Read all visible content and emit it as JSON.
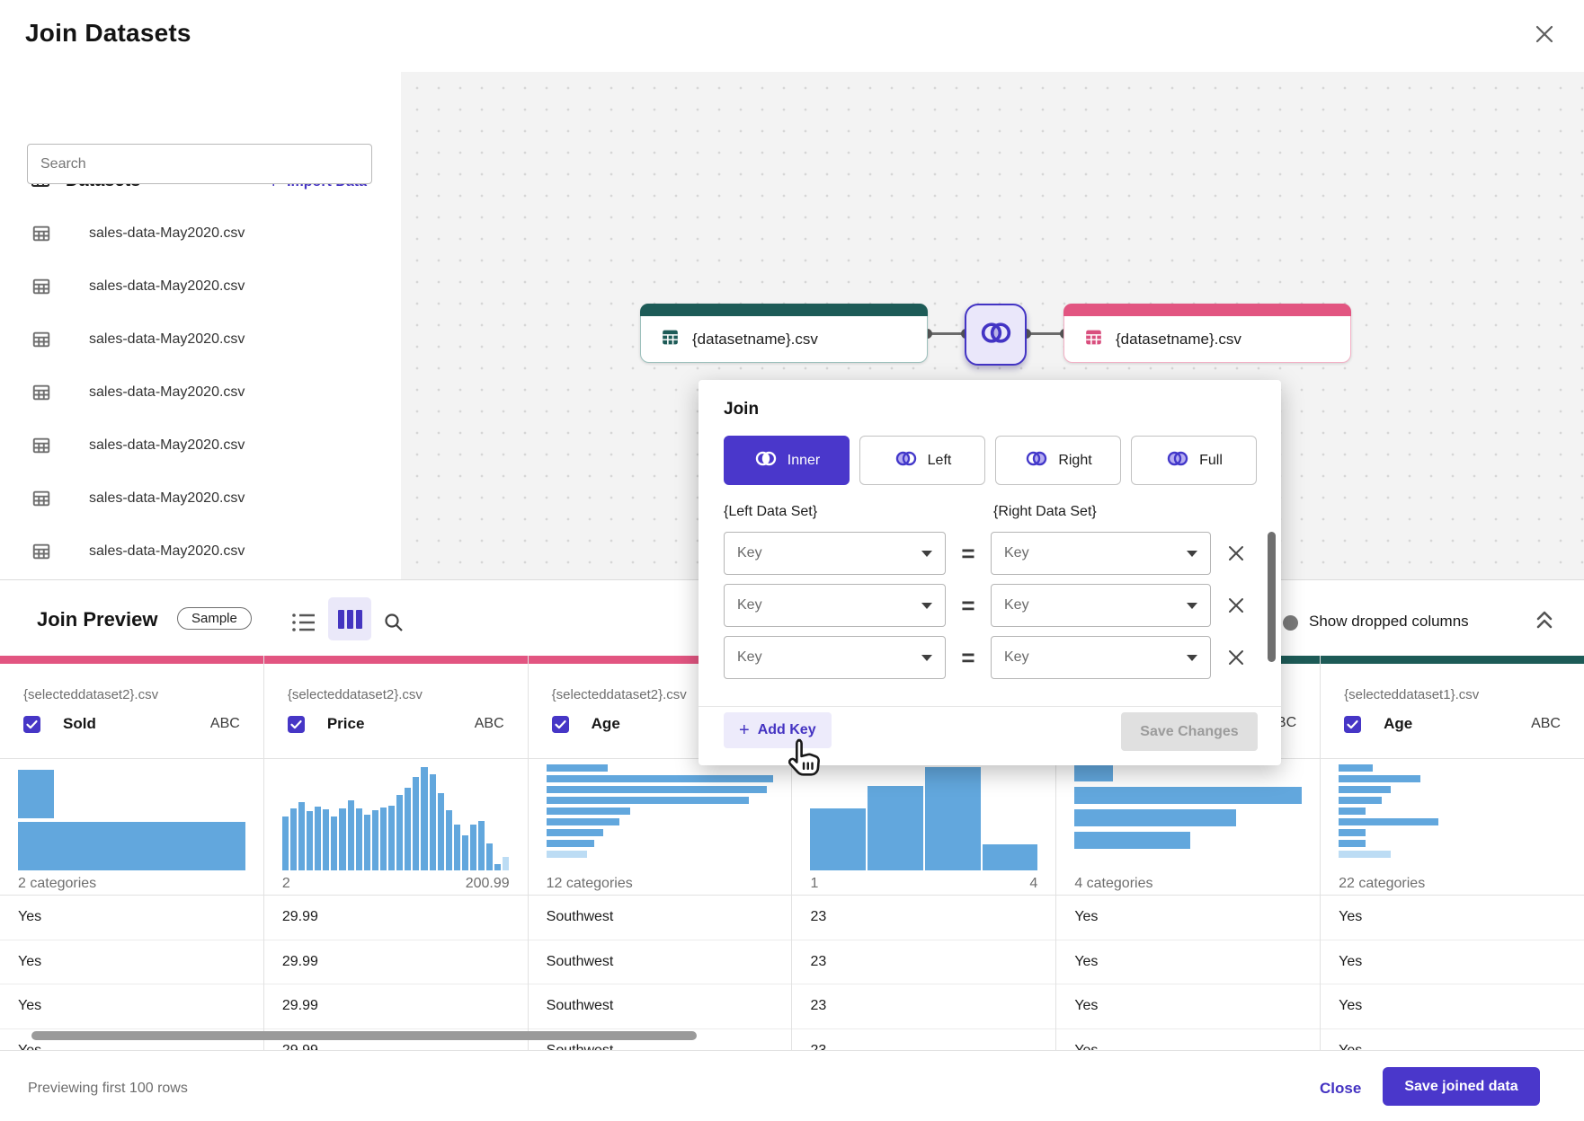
{
  "window": {
    "title": "Join Datasets"
  },
  "sidebar": {
    "header": "Datasets",
    "import_plus": "+",
    "import_label": "Import Data",
    "search_placeholder": "Search",
    "datasets": [
      "sales-data-May2020.csv",
      "sales-data-May2020.csv",
      "sales-data-May2020.csv",
      "sales-data-May2020.csv",
      "sales-data-May2020.csv",
      "sales-data-May2020.csv",
      "sales-data-May2020.csv"
    ]
  },
  "canvas": {
    "left_node_label": "{datasetname}.csv",
    "right_node_label": "{datasetname}.csv"
  },
  "join": {
    "title": "Join",
    "types": [
      {
        "label": "Inner",
        "variant": "inner",
        "selected": true
      },
      {
        "label": "Left",
        "variant": "left",
        "selected": false
      },
      {
        "label": "Right",
        "variant": "right",
        "selected": false
      },
      {
        "label": "Full",
        "variant": "full",
        "selected": false
      }
    ],
    "left_dataset_label": "{Left Data Set}",
    "right_dataset_label": "{Right Data Set}",
    "equals": "=",
    "key_placeholder": "Key",
    "key_row_count": 3,
    "add_key_plus": "+",
    "add_key_label": "Add Key",
    "save_changes_label": "Save Changes"
  },
  "preview": {
    "title": "Join Preview",
    "badge": "Sample",
    "show_dropped_label": "Show dropped columns",
    "previewing_note": "Previewing first 100 rows",
    "close_label": "Close",
    "save_label": "Save joined data"
  },
  "table": {
    "columns": [
      {
        "dataset": "{selecteddataset2}.csv",
        "name": "Sold",
        "type": "ABC",
        "checked": true,
        "accent": "#e25581",
        "stat_left": "2 categories",
        "stat_right": "",
        "hist": {
          "orient": "h",
          "bar": 54,
          "gap": 4,
          "align": "end",
          "values": [
            0.16,
            1.0
          ],
          "light": []
        },
        "values": [
          "Yes",
          "Yes",
          "Yes",
          "Yes"
        ]
      },
      {
        "dataset": "{selecteddataset2}.csv",
        "name": "Price",
        "type": "ABC",
        "checked": true,
        "accent": "#e25581",
        "stat_left": "2",
        "stat_right": "200.99",
        "hist": {
          "orient": "v",
          "gap": 2,
          "align": "start",
          "values": [
            0.52,
            0.6,
            0.66,
            0.57,
            0.62,
            0.59,
            0.52,
            0.6,
            0.68,
            0.6,
            0.54,
            0.58,
            0.61,
            0.63,
            0.73,
            0.8,
            0.9,
            1.0,
            0.93,
            0.75,
            0.58,
            0.44,
            0.34,
            0.44,
            0.48,
            0.26,
            0.06,
            0.13
          ],
          "light": [
            27
          ]
        },
        "values": [
          "29.99",
          "29.99",
          "29.99",
          "29.99"
        ]
      },
      {
        "dataset": "{selecteddataset2}.csv",
        "name": "Age",
        "type": "",
        "checked": true,
        "accent": "#e25581",
        "stat_left": "12 categories",
        "stat_right": "",
        "hist": {
          "orient": "h",
          "bar": 8,
          "gap": 4,
          "align": "start",
          "values": [
            0.27,
            1.0,
            0.97,
            0.89,
            0.37,
            0.32,
            0.25,
            0.21,
            0.18
          ],
          "light": [
            8
          ]
        },
        "values": [
          "Southwest",
          "Southwest",
          "Southwest",
          "Southwest"
        ]
      },
      {
        "dataset": "",
        "name": "",
        "type": "",
        "checked": false,
        "accent": "#e25581",
        "stat_left": "1",
        "stat_right": "4",
        "hist": {
          "orient": "v",
          "gap": 2,
          "align": "start",
          "values": [
            0.6,
            0.82,
            1.0,
            0.25
          ],
          "light": []
        },
        "values": [
          "23",
          "23",
          "23",
          "23"
        ]
      },
      {
        "dataset": "",
        "name": "",
        "type": "ABC",
        "checked": false,
        "accent": "#1d5b57",
        "stat_left": "4 categories",
        "stat_right": "",
        "hist": {
          "orient": "h",
          "bar": 19,
          "gap": 6,
          "align": "start",
          "values": [
            0.17,
            1.0,
            0.71,
            0.51
          ],
          "light": []
        },
        "values": [
          "Yes",
          "Yes",
          "Yes",
          "Yes"
        ]
      },
      {
        "dataset": "{selecteddataset1}.csv",
        "name": "Age",
        "type": "ABC",
        "checked": true,
        "accent": "#1d5b57",
        "stat_left": "22 categories",
        "stat_right": "",
        "hist": {
          "orient": "h",
          "bar": 8,
          "gap": 4,
          "align": "start",
          "values": [
            0.15,
            0.36,
            0.23,
            0.19,
            0.12,
            0.44,
            0.12,
            0.12,
            0.23
          ],
          "light": [
            8
          ]
        },
        "values": [
          "Yes",
          "Yes",
          "Yes",
          "Yes"
        ]
      }
    ]
  },
  "colors": {
    "primary": "#4a37cb",
    "link": "#4433c2",
    "pink": "#e25581",
    "teal": "#1d5b57",
    "hist_blue": "#62a7dd",
    "hist_blue_light": "#bcdcf4",
    "checkbox": "#4636c6"
  }
}
